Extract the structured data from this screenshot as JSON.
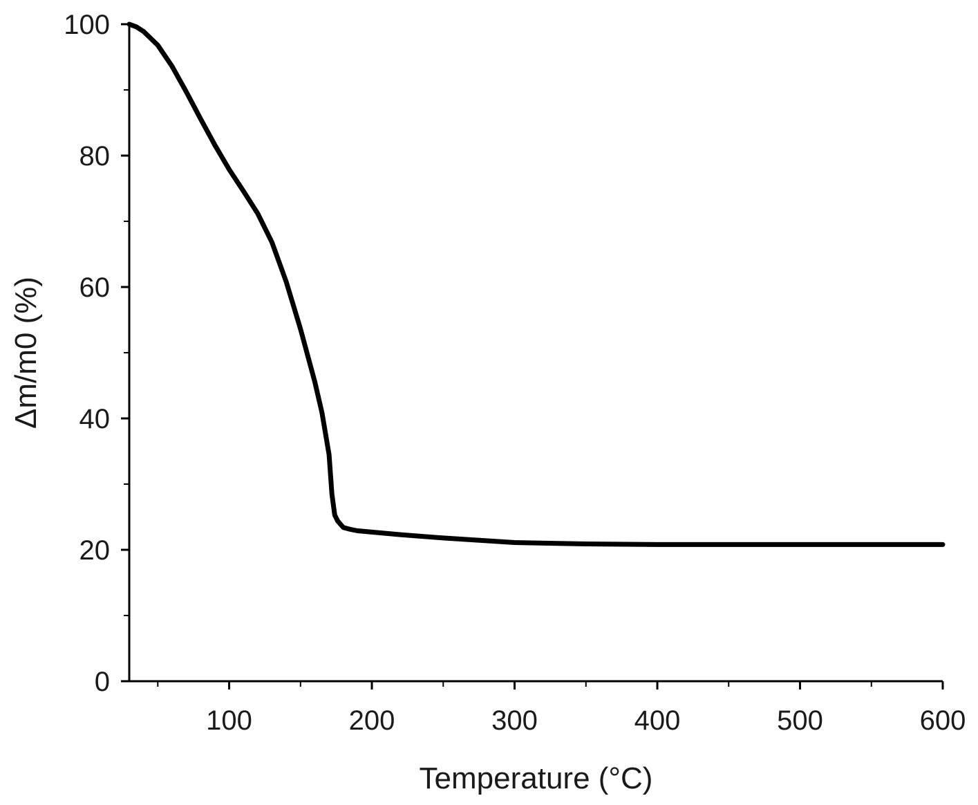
{
  "chart_data": {
    "type": "line",
    "title": "",
    "xlabel": "Temperature (°C)",
    "ylabel": "Δm/m0 (%)",
    "xlim": [
      30,
      600
    ],
    "ylim": [
      0,
      100
    ],
    "x_ticks": [
      100,
      200,
      300,
      400,
      500,
      600
    ],
    "y_ticks": [
      0,
      20,
      40,
      60,
      80,
      100
    ],
    "grid": false,
    "line_color": "#000000",
    "series": [
      {
        "x": [
          30,
          35,
          40,
          50,
          60,
          70,
          80,
          90,
          100,
          110,
          120,
          130,
          140,
          150,
          160,
          165,
          170,
          172,
          174,
          176,
          178,
          180,
          185,
          190,
          200,
          220,
          250,
          300,
          350,
          400,
          450,
          500,
          550,
          600
        ],
        "values": [
          100,
          99.6,
          98.9,
          96.8,
          93.6,
          89.7,
          85.6,
          81.6,
          77.9,
          74.6,
          71.2,
          66.8,
          60.8,
          53.6,
          45.6,
          40.9,
          34.5,
          28.5,
          25.3,
          24.4,
          23.9,
          23.4,
          23.1,
          22.9,
          22.7,
          22.3,
          21.8,
          21.1,
          20.9,
          20.8,
          20.8,
          20.8,
          20.8,
          20.8
        ]
      }
    ]
  }
}
